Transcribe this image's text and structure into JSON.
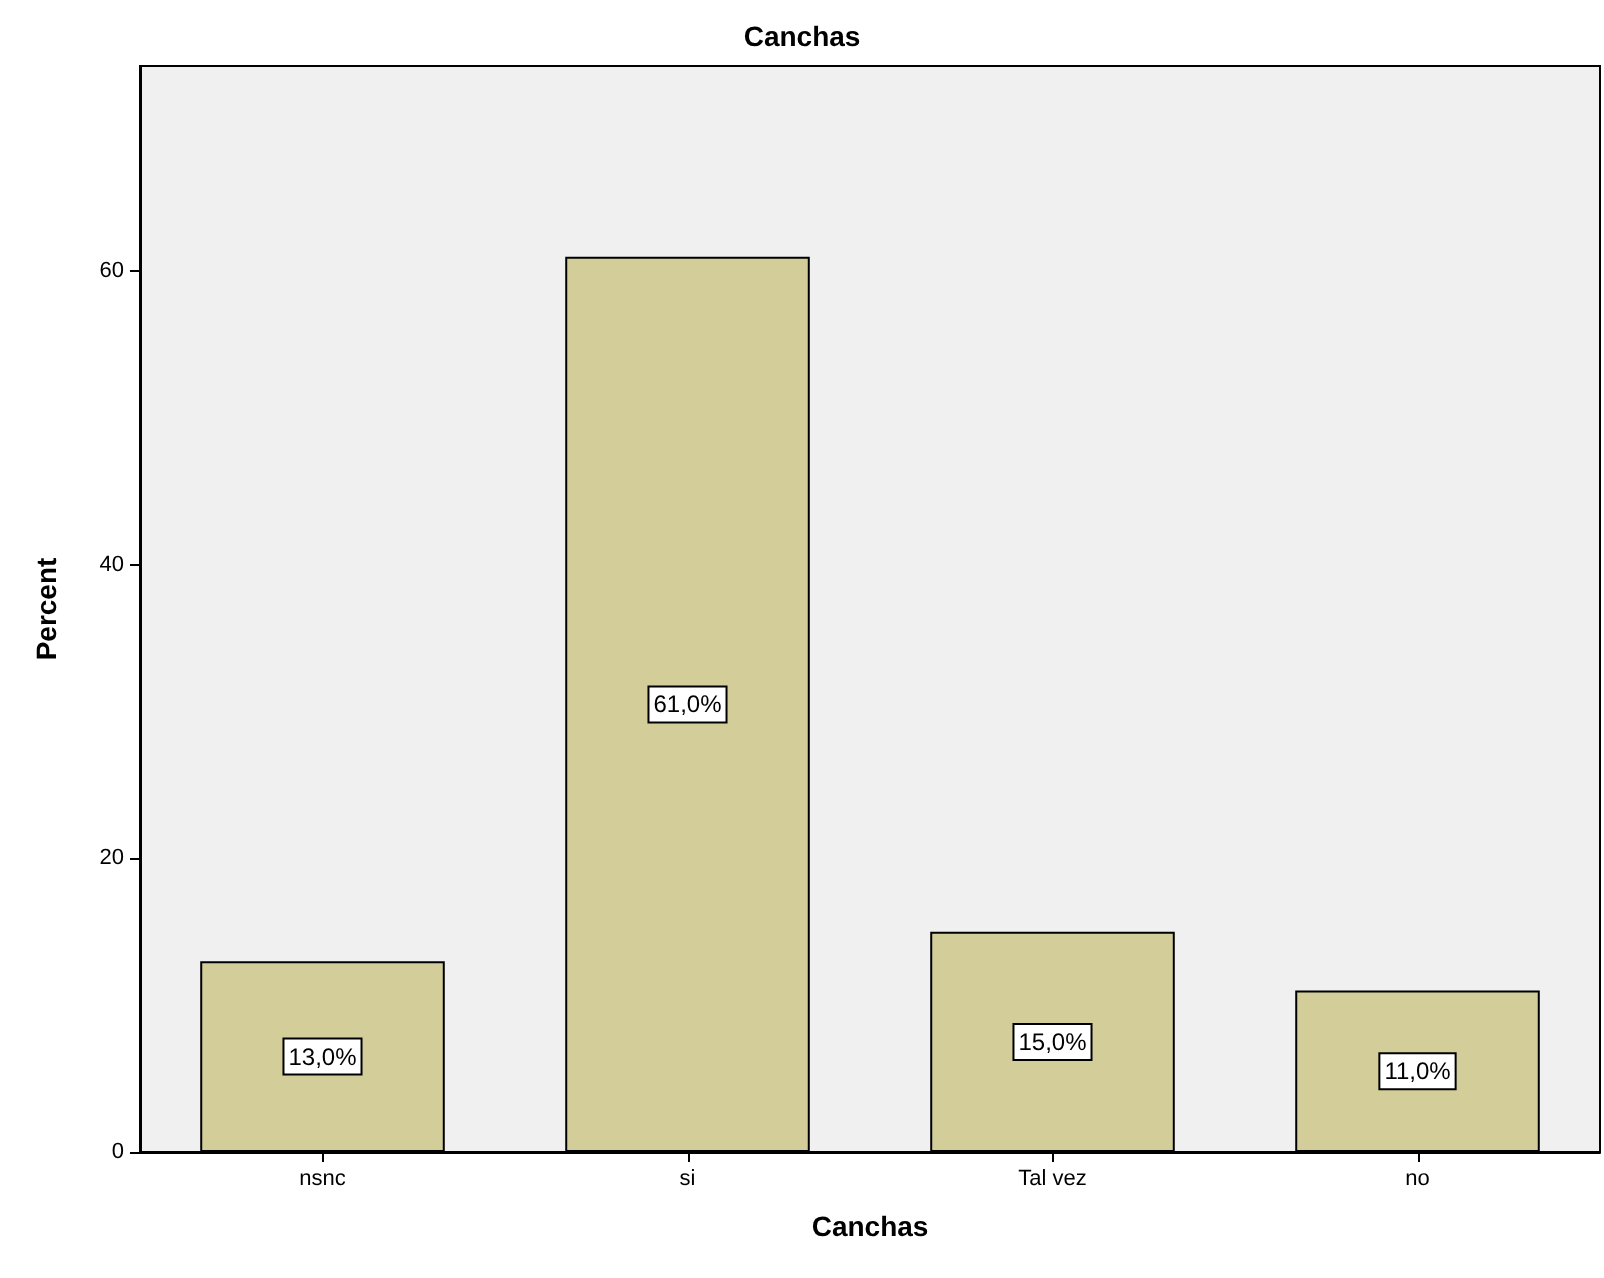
{
  "chart_data": {
    "type": "bar",
    "title": "Canchas",
    "xlabel": "Canchas",
    "ylabel": "Percent",
    "categories": [
      "nsnc",
      "si",
      "Tal vez",
      "no"
    ],
    "values": [
      13,
      61,
      15,
      11
    ],
    "value_labels": [
      "13,0%",
      "61,0%",
      "15,0%",
      "11,0%"
    ],
    "color": "#d3ce99",
    "ylim": [
      0,
      74
    ],
    "yticks": [
      0,
      20,
      40,
      60
    ],
    "grid": false
  }
}
